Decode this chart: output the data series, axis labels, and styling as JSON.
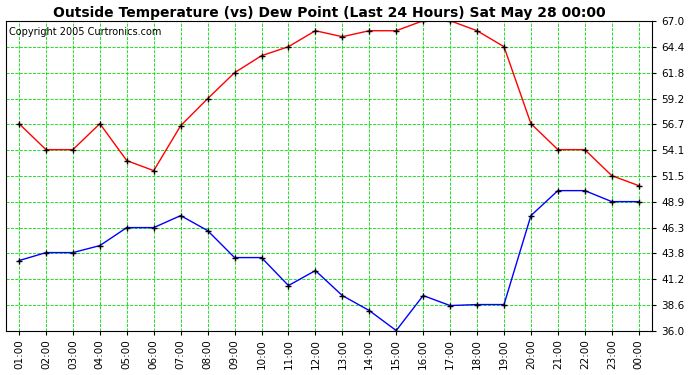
{
  "title": "Outside Temperature (vs) Dew Point (Last 24 Hours) Sat May 28 00:00",
  "copyright": "Copyright 2005 Curtronics.com",
  "figure_bg": "#ffffff",
  "plot_bg": "#ffffff",
  "grid_color": "#00dd00",
  "grid_style": "--",
  "x_labels": [
    "01:00",
    "02:00",
    "03:00",
    "04:00",
    "05:00",
    "06:00",
    "07:00",
    "08:00",
    "09:00",
    "10:00",
    "11:00",
    "12:00",
    "13:00",
    "14:00",
    "15:00",
    "16:00",
    "17:00",
    "18:00",
    "19:00",
    "20:00",
    "21:00",
    "22:00",
    "23:00",
    "00:00"
  ],
  "temp_color": "#ff0000",
  "dew_color": "#0000ff",
  "temp_values": [
    56.7,
    54.1,
    54.1,
    56.7,
    53.0,
    52.0,
    56.5,
    59.2,
    61.8,
    63.5,
    64.4,
    66.0,
    65.4,
    66.0,
    66.0,
    67.0,
    67.0,
    66.0,
    64.4,
    56.7,
    54.1,
    54.1,
    51.5,
    50.5
  ],
  "dew_values": [
    43.0,
    43.8,
    43.8,
    44.5,
    46.3,
    46.3,
    47.5,
    46.0,
    43.3,
    43.3,
    40.5,
    42.0,
    39.5,
    38.0,
    36.0,
    39.5,
    38.5,
    38.6,
    38.6,
    47.5,
    50.0,
    50.0,
    48.9,
    48.9
  ],
  "ylim": [
    36.0,
    67.0
  ],
  "yticks": [
    36.0,
    38.6,
    41.2,
    43.8,
    46.3,
    48.9,
    51.5,
    54.1,
    56.7,
    59.2,
    61.8,
    64.4,
    67.0
  ],
  "title_fontsize": 10,
  "tick_fontsize": 7.5,
  "copyright_fontsize": 7
}
